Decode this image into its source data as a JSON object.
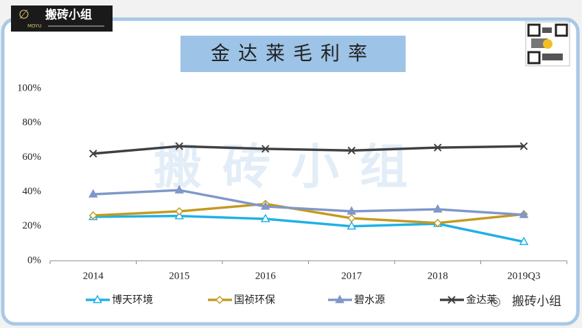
{
  "branding": {
    "logo": "搬砖小组",
    "logo_sub": "MOYU",
    "watermark": "搬砖小组",
    "footer": "搬砖小组"
  },
  "chart_data": {
    "type": "line",
    "title": "金达莱毛利率",
    "categories": [
      "2014",
      "2015",
      "2016",
      "2017",
      "2018",
      "2019Q3"
    ],
    "series": [
      {
        "name": "博天环境",
        "color": "#1fb0e6",
        "marker": "triangle-open",
        "values": [
          25.5,
          26,
          24.3,
          20,
          21.5,
          11
        ]
      },
      {
        "name": "国祯环保",
        "color": "#c49a1e",
        "marker": "diamond-open",
        "values": [
          26.3,
          28.7,
          33,
          24.7,
          21.9,
          27
        ]
      },
      {
        "name": "碧水源",
        "color": "#7f97c9",
        "marker": "triangle",
        "values": [
          38.6,
          41,
          31.5,
          28.7,
          29.9,
          26.7
        ]
      },
      {
        "name": "金达莱",
        "color": "#404040",
        "marker": "x",
        "values": [
          62.2,
          66.5,
          65,
          64,
          65.7,
          66.5
        ]
      }
    ],
    "ylim": [
      0,
      100
    ],
    "yticks": [
      {
        "value": 0,
        "label": "0%"
      },
      {
        "value": 20,
        "label": "20%"
      },
      {
        "value": 40,
        "label": "40%"
      },
      {
        "value": 60,
        "label": "60%"
      },
      {
        "value": 80,
        "label": "80%"
      },
      {
        "value": 100,
        "label": "100%"
      }
    ],
    "grid": false,
    "legend": "bottom"
  }
}
